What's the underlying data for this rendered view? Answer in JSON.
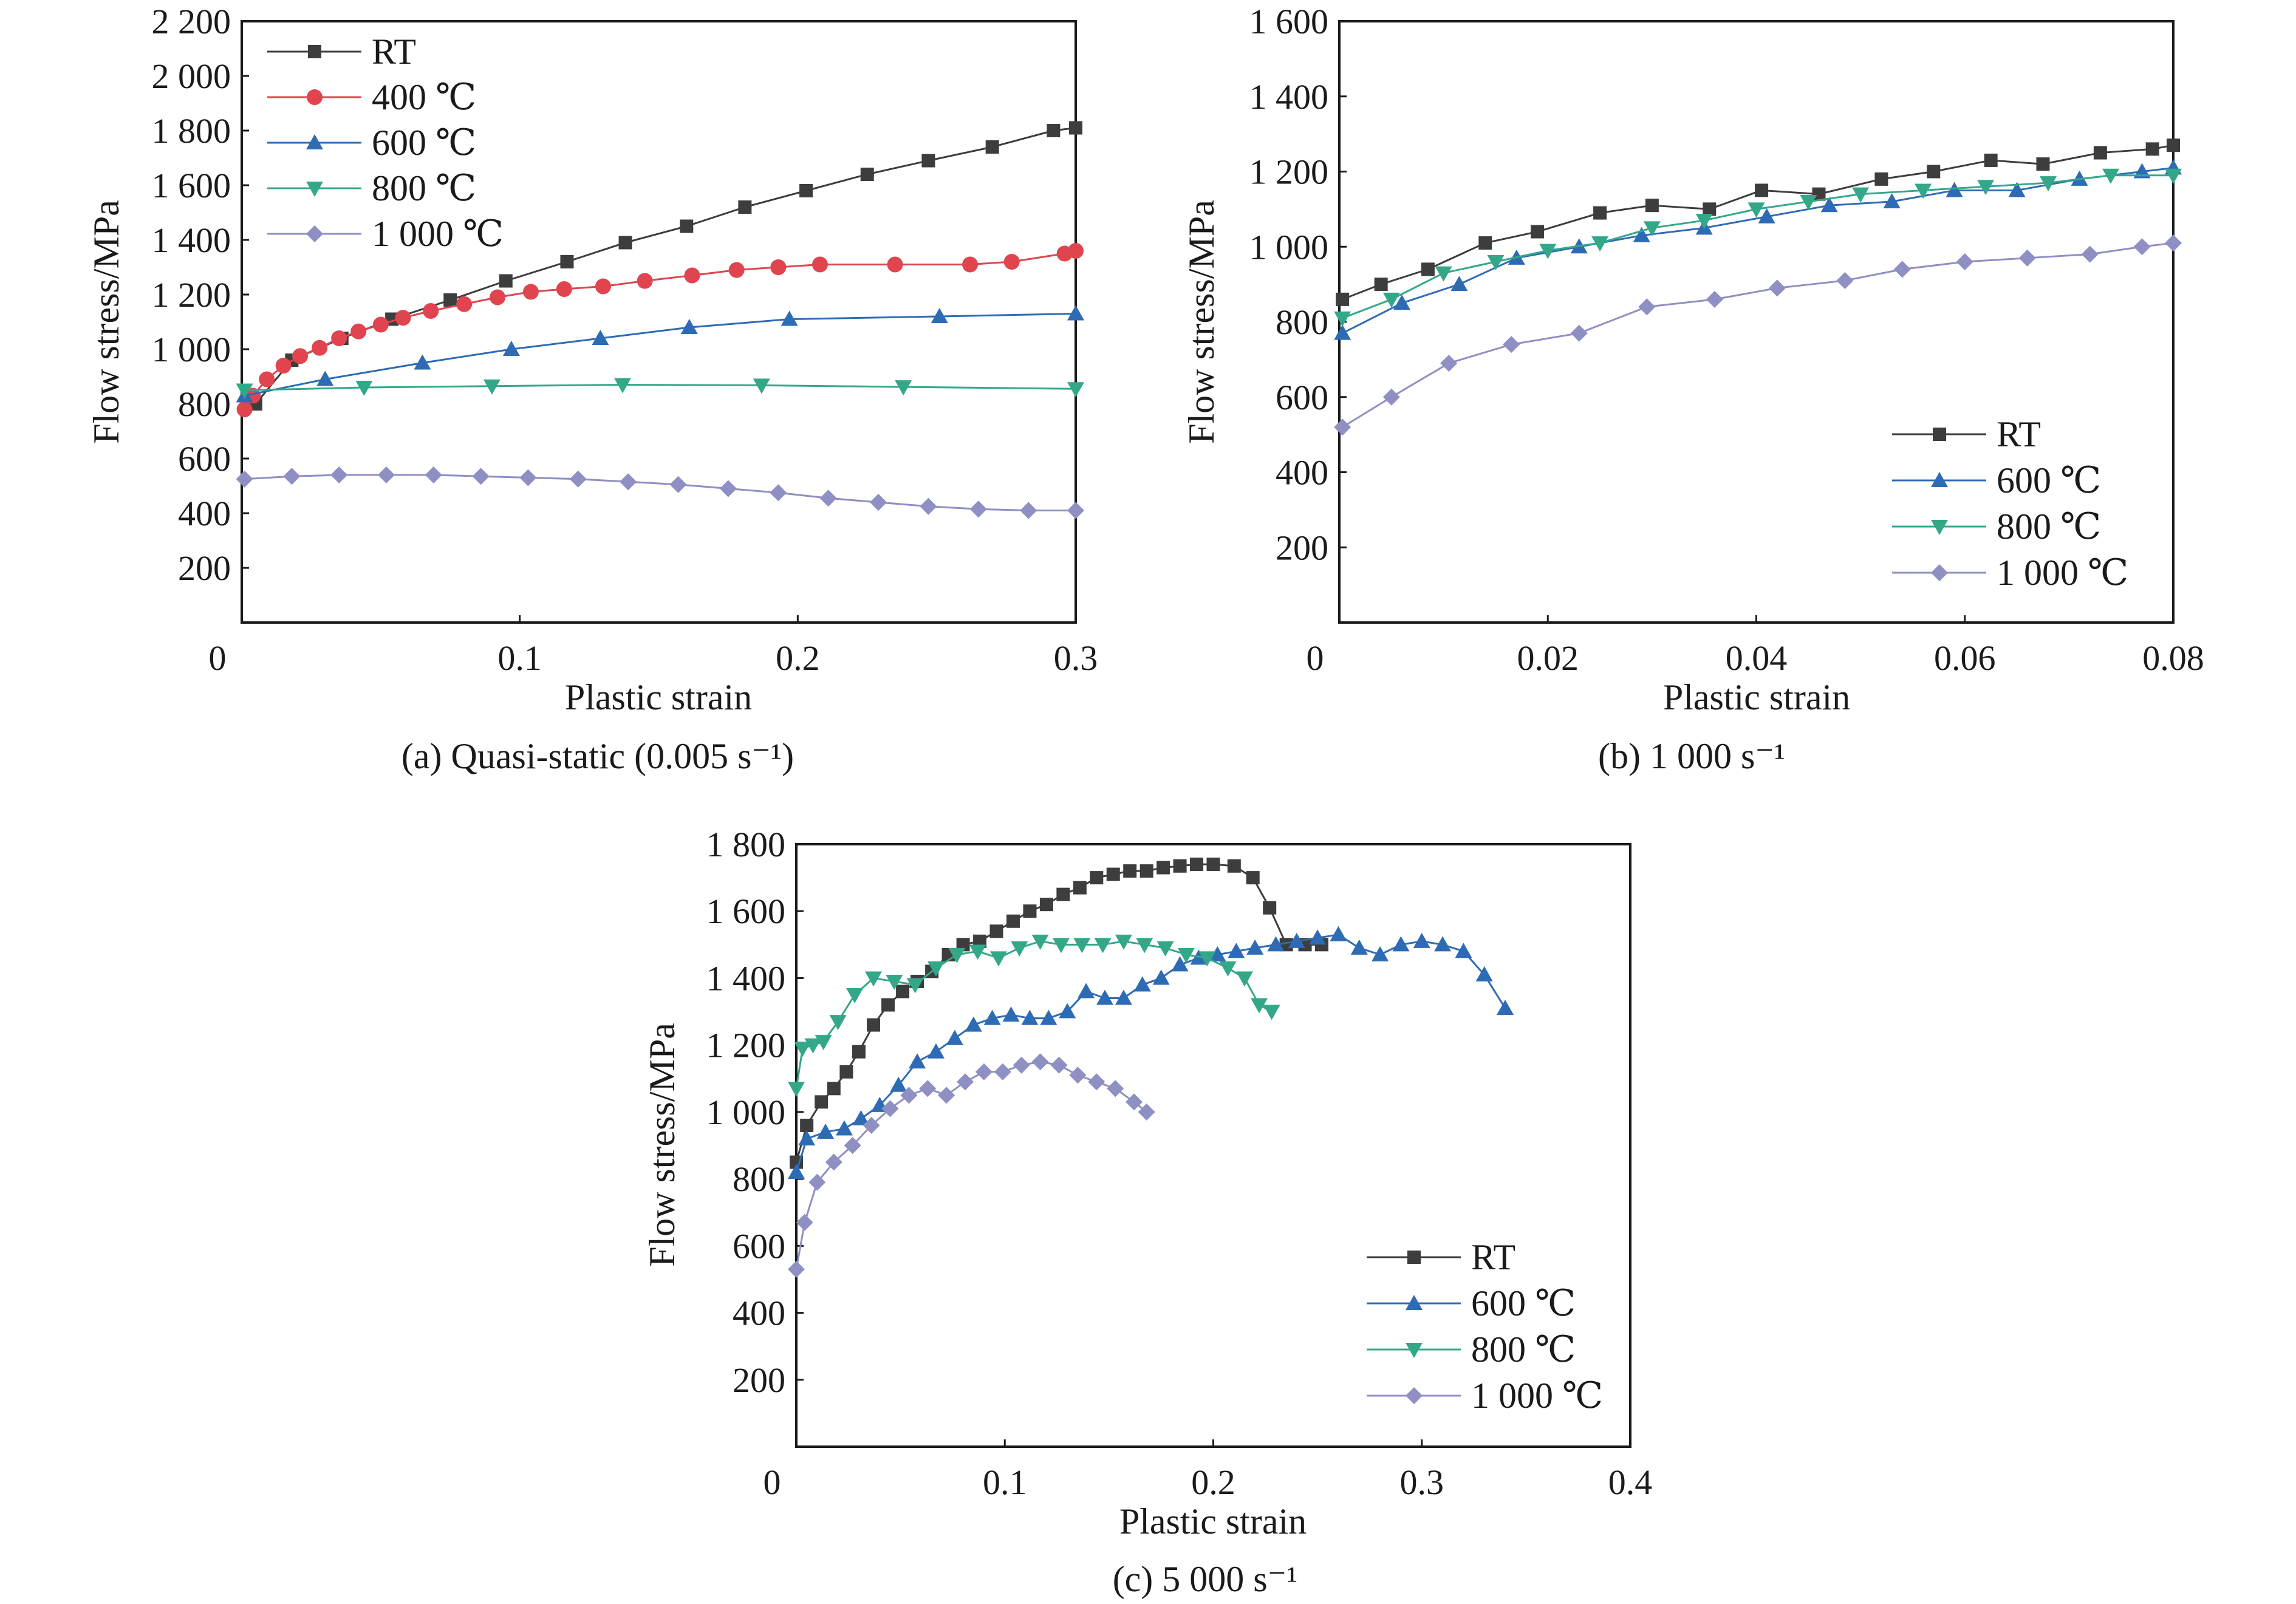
{
  "chart_data": [
    {
      "type": "line",
      "caption": "(a) Quasi-static (0.005 s⁻¹)",
      "xlabel": "Plastic strain",
      "ylabel": "Flow stress/MPa",
      "xlim": [
        0,
        0.3
      ],
      "ylim": [
        0,
        2200
      ],
      "xticks": [
        0,
        0.1,
        0.2,
        0.3
      ],
      "xtick_labels": [
        "0",
        "0.1",
        "0.2",
        "0.3"
      ],
      "yticks": [
        200,
        400,
        600,
        800,
        1000,
        1200,
        1400,
        1600,
        1800,
        2000,
        2200
      ],
      "ytick_labels": [
        "200",
        "400",
        "600",
        "800",
        "1 000",
        "1 200",
        "1 400",
        "1 600",
        "1 800",
        "2 000",
        "2 200"
      ],
      "grid": false,
      "legend_position": "top-left",
      "series": [
        {
          "name": "RT",
          "color": "#3d3d3d",
          "marker": "square",
          "x": [
            0.005,
            0.018,
            0.036,
            0.054,
            0.075,
            0.095,
            0.117,
            0.138,
            0.16,
            0.181,
            0.203,
            0.225,
            0.247,
            0.27,
            0.292,
            0.3
          ],
          "y": [
            800,
            960,
            1040,
            1110,
            1180,
            1250,
            1320,
            1390,
            1450,
            1520,
            1580,
            1640,
            1690,
            1740,
            1800,
            1810
          ]
        },
        {
          "name": "400 ℃",
          "color": "#e0454f",
          "marker": "circle",
          "x": [
            0.001,
            0.004,
            0.009,
            0.015,
            0.021,
            0.028,
            0.035,
            0.042,
            0.05,
            0.058,
            0.068,
            0.08,
            0.092,
            0.104,
            0.116,
            0.13,
            0.145,
            0.162,
            0.178,
            0.193,
            0.208,
            0.235,
            0.262,
            0.277,
            0.296,
            0.3
          ],
          "y": [
            780,
            830,
            890,
            940,
            975,
            1005,
            1040,
            1065,
            1090,
            1115,
            1140,
            1165,
            1190,
            1210,
            1220,
            1230,
            1250,
            1270,
            1290,
            1300,
            1310,
            1310,
            1310,
            1320,
            1350,
            1360
          ]
        },
        {
          "name": "600 ℃",
          "color": "#2e6bb5",
          "marker": "triangle-up",
          "x": [
            0.001,
            0.03,
            0.065,
            0.097,
            0.129,
            0.161,
            0.197,
            0.251,
            0.3
          ],
          "y": [
            830,
            890,
            950,
            1000,
            1040,
            1080,
            1110,
            1120,
            1130
          ]
        },
        {
          "name": "800 ℃",
          "color": "#33a889",
          "marker": "triangle-down",
          "x": [
            0.001,
            0.044,
            0.09,
            0.137,
            0.187,
            0.238,
            0.3
          ],
          "y": [
            850,
            860,
            865,
            870,
            868,
            862,
            855
          ]
        },
        {
          "name": "1 000 ℃",
          "color": "#8f8fc4",
          "marker": "diamond",
          "x": [
            0.001,
            0.018,
            0.035,
            0.052,
            0.069,
            0.086,
            0.103,
            0.121,
            0.139,
            0.157,
            0.175,
            0.193,
            0.211,
            0.229,
            0.247,
            0.265,
            0.283,
            0.3
          ],
          "y": [
            525,
            535,
            540,
            540,
            540,
            535,
            530,
            525,
            515,
            505,
            490,
            475,
            455,
            440,
            425,
            415,
            410,
            410
          ]
        }
      ]
    },
    {
      "type": "line",
      "caption": "(b) 1 000 s⁻¹",
      "xlabel": "Plastic strain",
      "ylabel": "Flow stress/MPa",
      "xlim": [
        0,
        0.08
      ],
      "ylim": [
        0,
        1600
      ],
      "xticks": [
        0,
        0.02,
        0.04,
        0.06,
        0.08
      ],
      "xtick_labels": [
        "0",
        "0.02",
        "0.04",
        "0.06",
        "0.08"
      ],
      "yticks": [
        200,
        400,
        600,
        800,
        1000,
        1200,
        1400,
        1600
      ],
      "ytick_labels": [
        "200",
        "400",
        "600",
        "800",
        "1 000",
        "1 200",
        "1 400",
        "1 600"
      ],
      "grid": false,
      "legend_position": "bottom-right",
      "series": [
        {
          "name": "RT",
          "color": "#3d3d3d",
          "marker": "square",
          "x": [
            0.0003,
            0.004,
            0.0085,
            0.014,
            0.019,
            0.025,
            0.03,
            0.0355,
            0.0405,
            0.046,
            0.052,
            0.057,
            0.0625,
            0.0675,
            0.073,
            0.078,
            0.08
          ],
          "y": [
            860,
            900,
            940,
            1010,
            1040,
            1090,
            1110,
            1100,
            1150,
            1140,
            1180,
            1200,
            1230,
            1220,
            1250,
            1260,
            1270
          ]
        },
        {
          "name": "600 ℃",
          "color": "#2e6bb5",
          "marker": "triangle-up",
          "x": [
            0.0003,
            0.006,
            0.0115,
            0.017,
            0.023,
            0.029,
            0.035,
            0.041,
            0.047,
            0.053,
            0.059,
            0.065,
            0.071,
            0.077,
            0.08
          ],
          "y": [
            770,
            850,
            900,
            970,
            1000,
            1030,
            1050,
            1080,
            1110,
            1120,
            1150,
            1150,
            1180,
            1200,
            1210
          ]
        },
        {
          "name": "800 ℃",
          "color": "#33a889",
          "marker": "triangle-down",
          "x": [
            0.0003,
            0.005,
            0.01,
            0.015,
            0.02,
            0.025,
            0.03,
            0.035,
            0.04,
            0.045,
            0.05,
            0.056,
            0.062,
            0.068,
            0.074,
            0.08
          ],
          "y": [
            810,
            860,
            930,
            960,
            990,
            1010,
            1050,
            1070,
            1100,
            1120,
            1140,
            1150,
            1160,
            1170,
            1190,
            1190
          ]
        },
        {
          "name": "1 000 ℃",
          "color": "#8f8fc4",
          "marker": "diamond",
          "x": [
            0.0003,
            0.005,
            0.0105,
            0.0165,
            0.023,
            0.0295,
            0.036,
            0.042,
            0.0485,
            0.054,
            0.06,
            0.066,
            0.072,
            0.077,
            0.08
          ],
          "y": [
            520,
            600,
            690,
            740,
            770,
            840,
            860,
            890,
            910,
            940,
            960,
            970,
            980,
            1000,
            1010
          ]
        }
      ]
    },
    {
      "type": "line",
      "caption": "(c) 5 000 s⁻¹",
      "xlabel": "Plastic strain",
      "ylabel": "Flow stress/MPa",
      "xlim": [
        0,
        0.4
      ],
      "ylim": [
        0,
        1800
      ],
      "xticks": [
        0,
        0.1,
        0.2,
        0.3,
        0.4
      ],
      "xtick_labels": [
        "0",
        "0.1",
        "0.2",
        "0.3",
        "0.4"
      ],
      "yticks": [
        200,
        400,
        600,
        800,
        1000,
        1200,
        1400,
        1600,
        1800
      ],
      "ytick_labels": [
        "200",
        "400",
        "600",
        "800",
        "1 000",
        "1 200",
        "1 400",
        "1 600",
        "1 800"
      ],
      "grid": false,
      "legend_position": "bottom-right",
      "series": [
        {
          "name": "RT",
          "color": "#3d3d3d",
          "marker": "square",
          "x": [
            0.0,
            0.005,
            0.012,
            0.018,
            0.024,
            0.03,
            0.037,
            0.044,
            0.051,
            0.058,
            0.065,
            0.073,
            0.08,
            0.088,
            0.096,
            0.104,
            0.112,
            0.12,
            0.128,
            0.136,
            0.144,
            0.152,
            0.16,
            0.168,
            0.176,
            0.184,
            0.192,
            0.2,
            0.21,
            0.219,
            0.227,
            0.235,
            0.244,
            0.252
          ],
          "y": [
            850,
            960,
            1030,
            1070,
            1120,
            1180,
            1260,
            1320,
            1360,
            1390,
            1420,
            1470,
            1500,
            1510,
            1540,
            1570,
            1600,
            1620,
            1650,
            1670,
            1700,
            1710,
            1720,
            1720,
            1730,
            1735,
            1740,
            1740,
            1735,
            1700,
            1610,
            1500,
            1500,
            1500
          ]
        },
        {
          "name": "600 ℃",
          "color": "#2e6bb5",
          "marker": "triangle-up",
          "x": [
            0.0,
            0.005,
            0.014,
            0.023,
            0.031,
            0.04,
            0.049,
            0.058,
            0.067,
            0.076,
            0.085,
            0.094,
            0.103,
            0.112,
            0.121,
            0.13,
            0.139,
            0.148,
            0.157,
            0.166,
            0.175,
            0.184,
            0.193,
            0.202,
            0.211,
            0.22,
            0.23,
            0.24,
            0.25,
            0.26,
            0.27,
            0.28,
            0.29,
            0.3,
            0.31,
            0.32,
            0.33,
            0.34
          ],
          "y": [
            820,
            920,
            940,
            950,
            980,
            1020,
            1080,
            1150,
            1180,
            1220,
            1260,
            1280,
            1290,
            1280,
            1280,
            1300,
            1360,
            1340,
            1340,
            1380,
            1400,
            1440,
            1460,
            1470,
            1480,
            1490,
            1500,
            1510,
            1520,
            1530,
            1490,
            1470,
            1500,
            1510,
            1500,
            1480,
            1410,
            1310
          ]
        },
        {
          "name": "800 ℃",
          "color": "#33a889",
          "marker": "triangle-down",
          "x": [
            0.0,
            0.003,
            0.008,
            0.013,
            0.02,
            0.028,
            0.037,
            0.047,
            0.057,
            0.067,
            0.077,
            0.087,
            0.097,
            0.107,
            0.117,
            0.127,
            0.137,
            0.147,
            0.157,
            0.167,
            0.177,
            0.187,
            0.197,
            0.207,
            0.215,
            0.222,
            0.228
          ],
          "y": [
            1070,
            1190,
            1200,
            1210,
            1270,
            1350,
            1400,
            1390,
            1380,
            1430,
            1470,
            1480,
            1460,
            1490,
            1510,
            1500,
            1500,
            1500,
            1510,
            1500,
            1490,
            1470,
            1460,
            1430,
            1400,
            1320,
            1300
          ]
        },
        {
          "name": "1 000 ℃",
          "color": "#8f8fc4",
          "marker": "diamond",
          "x": [
            0.0,
            0.004,
            0.01,
            0.018,
            0.027,
            0.036,
            0.045,
            0.054,
            0.063,
            0.072,
            0.081,
            0.09,
            0.099,
            0.108,
            0.117,
            0.126,
            0.135,
            0.144,
            0.153,
            0.162,
            0.168
          ],
          "y": [
            530,
            670,
            790,
            850,
            900,
            960,
            1010,
            1050,
            1070,
            1050,
            1090,
            1120,
            1120,
            1140,
            1150,
            1140,
            1110,
            1090,
            1070,
            1030,
            1000
          ]
        }
      ]
    }
  ]
}
